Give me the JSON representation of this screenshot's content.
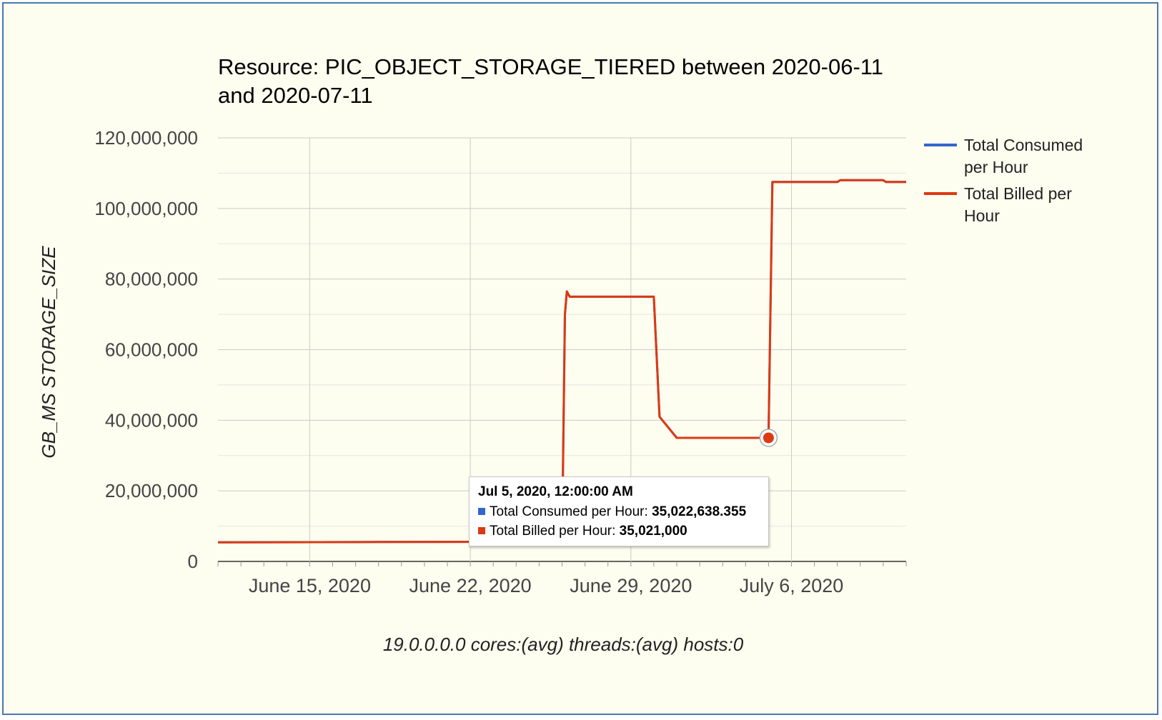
{
  "chart_data": {
    "type": "line",
    "title": "Resource: PIC_OBJECT_STORAGE_TIERED between 2020-06-11 and 2020-07-11",
    "title_lines": [
      "Resource: PIC_OBJECT_STORAGE_TIERED between 2020-06-11",
      "and 2020-07-11"
    ],
    "ylabel": "GB_MS STORAGE_SIZE",
    "footer": "19.0.0.0.0 cores:(avg) threads:(avg) hosts:0",
    "ylim": [
      0,
      120000000
    ],
    "y_ticks": [
      0,
      20000000,
      40000000,
      60000000,
      80000000,
      100000000,
      120000000
    ],
    "y_tick_labels": [
      "0",
      "20,000,000",
      "40,000,000",
      "60,000,000",
      "80,000,000",
      "100,000,000",
      "120,000,000"
    ],
    "xlim": [
      "2020-06-11",
      "2020-07-11"
    ],
    "x_ticks": [
      "2020-06-15",
      "2020-06-22",
      "2020-06-29",
      "2020-07-06"
    ],
    "x_tick_labels": [
      "June 15, 2020",
      "June 22, 2020",
      "June 29, 2020",
      "July 6, 2020"
    ],
    "grid": true,
    "legend_position": "right",
    "series": [
      {
        "name": "Total Consumed per Hour",
        "color": "#3366cc",
        "points": [
          [
            "2020-06-11",
            5400000
          ],
          [
            "2020-06-18",
            5500000
          ],
          [
            "2020-06-26",
            5600000
          ],
          [
            "2020-06-26T03:00",
            70000000
          ],
          [
            "2020-06-26T05:00",
            76500000
          ],
          [
            "2020-06-26T08:00",
            75000000
          ],
          [
            "2020-06-30T00:00",
            75000000
          ],
          [
            "2020-06-30T06:00",
            41000000
          ],
          [
            "2020-07-01",
            35000000
          ],
          [
            "2020-07-05",
            35022638.355
          ],
          [
            "2020-07-05T04:00",
            107500000
          ],
          [
            "2020-07-08",
            107500000
          ],
          [
            "2020-07-08T03:00",
            108000000
          ],
          [
            "2020-07-10",
            108000000
          ],
          [
            "2020-07-10T03:00",
            107500000
          ],
          [
            "2020-07-11",
            107500000
          ]
        ]
      },
      {
        "name": "Total Billed per Hour",
        "color": "#dc3912",
        "points": [
          [
            "2020-06-11",
            5400000
          ],
          [
            "2020-06-18",
            5500000
          ],
          [
            "2020-06-26",
            5600000
          ],
          [
            "2020-06-26T03:00",
            70000000
          ],
          [
            "2020-06-26T05:00",
            76500000
          ],
          [
            "2020-06-26T08:00",
            75000000
          ],
          [
            "2020-06-30T00:00",
            75000000
          ],
          [
            "2020-06-30T06:00",
            41000000
          ],
          [
            "2020-07-01",
            35000000
          ],
          [
            "2020-07-05",
            35021000
          ],
          [
            "2020-07-05T04:00",
            107500000
          ],
          [
            "2020-07-08",
            107500000
          ],
          [
            "2020-07-08T03:00",
            108000000
          ],
          [
            "2020-07-10",
            108000000
          ],
          [
            "2020-07-10T03:00",
            107500000
          ],
          [
            "2020-07-11",
            107500000
          ]
        ]
      }
    ],
    "highlight": {
      "x": "2020-07-05",
      "y": 35021000,
      "series": "Total Billed per Hour"
    },
    "tooltip": {
      "title": "Jul 5, 2020, 12:00:00 AM",
      "rows": [
        {
          "label": "Total Consumed per Hour:",
          "value": "35,022,638.355",
          "color": "#3366cc"
        },
        {
          "label": "Total Billed per Hour:",
          "value": "35,021,000",
          "color": "#dc3912"
        }
      ]
    }
  }
}
